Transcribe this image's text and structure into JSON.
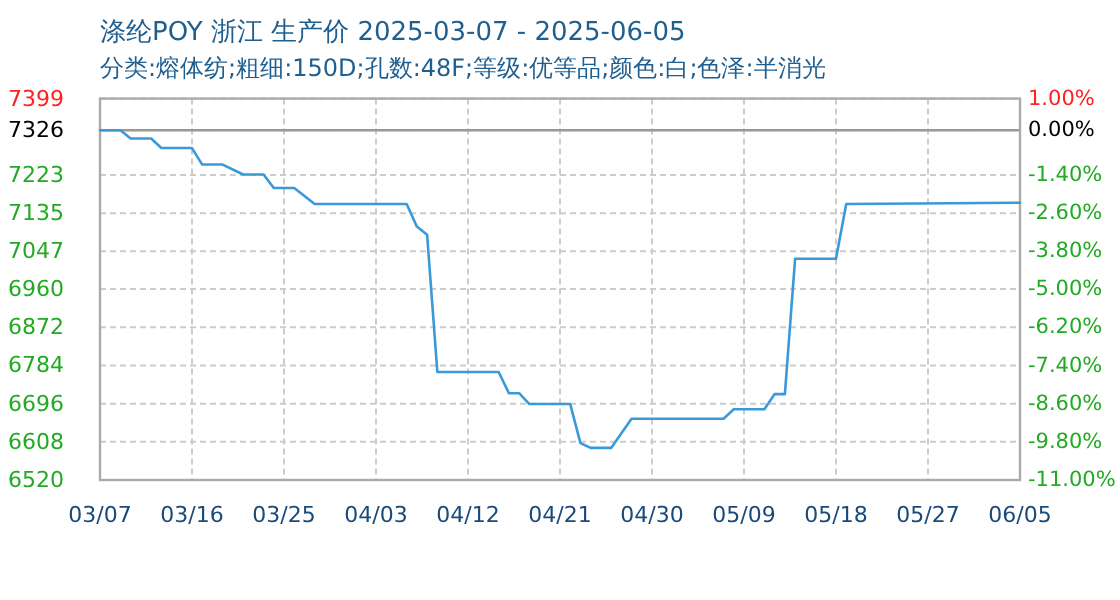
{
  "chart_data": {
    "type": "line",
    "title": "涤纶POY 浙江 生产价 2025-03-07 - 2025-06-05",
    "subtitle": "分类:熔体纺;粗细:150D;孔数:48F;等级:优等品;颜色:白;色泽:半消光",
    "x": [
      "2025-03-07",
      "2025-03-09",
      "2025-03-10",
      "2025-03-12",
      "2025-03-13",
      "2025-03-16",
      "2025-03-17",
      "2025-03-19",
      "2025-03-21",
      "2025-03-23",
      "2025-03-24",
      "2025-03-26",
      "2025-03-28",
      "2025-04-06",
      "2025-04-07",
      "2025-04-08",
      "2025-04-09",
      "2025-04-15",
      "2025-04-16",
      "2025-04-17",
      "2025-04-18",
      "2025-04-22",
      "2025-04-23",
      "2025-04-24",
      "2025-04-26",
      "2025-04-28",
      "2025-05-07",
      "2025-05-08",
      "2025-05-11",
      "2025-05-12",
      "2025-05-13",
      "2025-05-14",
      "2025-05-18",
      "2025-05-19",
      "2025-06-05"
    ],
    "series": [
      {
        "color": "#3a9ad9",
        "values": [
          7326,
          7326,
          7307,
          7307,
          7285,
          7285,
          7247,
          7247,
          7224,
          7224,
          7193,
          7193,
          7156,
          7156,
          7104,
          7085,
          6769,
          6769,
          6720,
          6720,
          6695,
          6695,
          6605,
          6594,
          6594,
          6661,
          6661,
          6683,
          6683,
          6718,
          6718,
          7030,
          7030,
          7156,
          7159
        ]
      }
    ],
    "xlim": [
      "2025-03-07",
      "2025-06-05"
    ],
    "xticks": [
      {
        "value": "2025-03-07",
        "label": "03/07"
      },
      {
        "value": "2025-03-16",
        "label": "03/16"
      },
      {
        "value": "2025-03-25",
        "label": "03/25"
      },
      {
        "value": "2025-04-03",
        "label": "04/03"
      },
      {
        "value": "2025-04-12",
        "label": "04/12"
      },
      {
        "value": "2025-04-21",
        "label": "04/21"
      },
      {
        "value": "2025-04-30",
        "label": "04/30"
      },
      {
        "value": "2025-05-09",
        "label": "05/09"
      },
      {
        "value": "2025-05-18",
        "label": "05/18"
      },
      {
        "value": "2025-05-27",
        "label": "05/27"
      },
      {
        "value": "2025-06-05",
        "label": "06/05"
      }
    ],
    "ylim": [
      6520,
      7399
    ],
    "yticks": [
      7399,
      7326,
      7223,
      7135,
      7047,
      6960,
      6872,
      6784,
      6696,
      6608,
      6520
    ],
    "y2lim": [
      -11.0,
      1.0
    ],
    "y2ticks": [
      {
        "value": 1.0,
        "label": "1.00%"
      },
      {
        "value": 0,
        "label": "0.00%"
      },
      {
        "value": -1.4,
        "label": "-1.40%"
      },
      {
        "value": -2.6,
        "label": "-2.60%"
      },
      {
        "value": -3.8,
        "label": "-3.80%"
      },
      {
        "value": -5.0,
        "label": "-5.00%"
      },
      {
        "value": -6.2,
        "label": "-6.20%"
      },
      {
        "value": -7.4,
        "label": "-7.40%"
      },
      {
        "value": -8.6,
        "label": "-8.60%"
      },
      {
        "value": -9.8,
        "label": "-9.80%"
      },
      {
        "value": -11.0,
        "label": "-11.00%"
      }
    ],
    "ref_lines": [
      {
        "axis": "y",
        "value": 7326,
        "color": "#999999"
      }
    ],
    "grid": true,
    "marker": "none",
    "line_style": "solid"
  }
}
